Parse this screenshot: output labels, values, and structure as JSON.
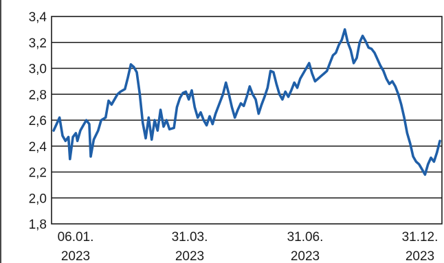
{
  "chart_data": {
    "type": "line",
    "title": "",
    "xlabel": "",
    "ylabel": "",
    "ylim": [
      1.8,
      3.4
    ],
    "y_ticks": [
      1.8,
      2.0,
      2.2,
      2.4,
      2.6,
      2.8,
      3.0,
      3.2,
      3.4
    ],
    "y_tick_labels": [
      "1,8",
      "2,0",
      "2,2",
      "2,4",
      "2,6",
      "2,8",
      "3,0",
      "3,2",
      "3,4"
    ],
    "x_range": [
      "2023-01-01",
      "2023-12-31"
    ],
    "x_ticks": [
      {
        "date": "2023-01-06",
        "line1": "06.01.",
        "line2": "2023"
      },
      {
        "date": "2023-03-31",
        "line1": "31.03.",
        "line2": "2023"
      },
      {
        "date": "2023-06-30",
        "line1": "31.06.",
        "line2": "2023"
      },
      {
        "date": "2023-12-31",
        "line1": "31.12.",
        "line2": "2023"
      }
    ],
    "grid": "horizontal",
    "line_color": "#1f5fa8",
    "series": [
      {
        "points": [
          [
            "2023-01-01",
            2.52
          ],
          [
            "2023-01-03",
            2.57
          ],
          [
            "2023-01-05",
            2.62
          ],
          [
            "2023-01-07",
            2.48
          ],
          [
            "2023-01-09",
            2.44
          ],
          [
            "2023-01-11",
            2.47
          ],
          [
            "2023-01-12",
            2.3
          ],
          [
            "2023-01-14",
            2.47
          ],
          [
            "2023-01-16",
            2.5
          ],
          [
            "2023-01-17",
            2.44
          ],
          [
            "2023-01-19",
            2.52
          ],
          [
            "2023-01-21",
            2.56
          ],
          [
            "2023-01-23",
            2.6
          ],
          [
            "2023-01-25",
            2.57
          ],
          [
            "2023-01-26",
            2.32
          ],
          [
            "2023-01-28",
            2.45
          ],
          [
            "2023-01-31",
            2.52
          ],
          [
            "2023-02-02",
            2.6
          ],
          [
            "2023-02-05",
            2.62
          ],
          [
            "2023-02-07",
            2.75
          ],
          [
            "2023-02-09",
            2.72
          ],
          [
            "2023-02-11",
            2.76
          ],
          [
            "2023-02-13",
            2.8
          ],
          [
            "2023-02-15",
            2.82
          ],
          [
            "2023-02-18",
            2.84
          ],
          [
            "2023-02-20",
            2.93
          ],
          [
            "2023-02-22",
            3.03
          ],
          [
            "2023-02-24",
            3.01
          ],
          [
            "2023-02-26",
            2.97
          ],
          [
            "2023-02-28",
            2.8
          ],
          [
            "2023-03-02",
            2.58
          ],
          [
            "2023-03-04",
            2.46
          ],
          [
            "2023-03-06",
            2.62
          ],
          [
            "2023-03-08",
            2.45
          ],
          [
            "2023-03-10",
            2.6
          ],
          [
            "2023-03-12",
            2.52
          ],
          [
            "2023-03-14",
            2.68
          ],
          [
            "2023-03-16",
            2.55
          ],
          [
            "2023-03-18",
            2.6
          ],
          [
            "2023-03-20",
            2.53
          ],
          [
            "2023-03-23",
            2.54
          ],
          [
            "2023-03-25",
            2.7
          ],
          [
            "2023-03-27",
            2.77
          ],
          [
            "2023-03-29",
            2.81
          ],
          [
            "2023-03-31",
            2.82
          ],
          [
            "2023-04-02",
            2.76
          ],
          [
            "2023-04-04",
            2.83
          ],
          [
            "2023-04-06",
            2.7
          ],
          [
            "2023-04-08",
            2.62
          ],
          [
            "2023-04-10",
            2.66
          ],
          [
            "2023-04-12",
            2.6
          ],
          [
            "2023-04-14",
            2.56
          ],
          [
            "2023-04-16",
            2.63
          ],
          [
            "2023-04-18",
            2.57
          ],
          [
            "2023-04-20",
            2.65
          ],
          [
            "2023-04-23",
            2.74
          ],
          [
            "2023-04-25",
            2.8
          ],
          [
            "2023-04-27",
            2.89
          ],
          [
            "2023-04-29",
            2.8
          ],
          [
            "2023-05-01",
            2.7
          ],
          [
            "2023-05-03",
            2.62
          ],
          [
            "2023-05-05",
            2.68
          ],
          [
            "2023-05-07",
            2.73
          ],
          [
            "2023-05-09",
            2.71
          ],
          [
            "2023-05-11",
            2.78
          ],
          [
            "2023-05-13",
            2.86
          ],
          [
            "2023-05-15",
            2.8
          ],
          [
            "2023-05-17",
            2.76
          ],
          [
            "2023-05-19",
            2.65
          ],
          [
            "2023-05-21",
            2.72
          ],
          [
            "2023-05-23",
            2.78
          ],
          [
            "2023-05-25",
            2.85
          ],
          [
            "2023-05-27",
            2.98
          ],
          [
            "2023-05-29",
            2.97
          ],
          [
            "2023-05-31",
            2.88
          ],
          [
            "2023-06-02",
            2.8
          ],
          [
            "2023-06-04",
            2.76
          ],
          [
            "2023-06-06",
            2.82
          ],
          [
            "2023-06-08",
            2.78
          ],
          [
            "2023-06-10",
            2.83
          ],
          [
            "2023-06-12",
            2.89
          ],
          [
            "2023-06-14",
            2.85
          ],
          [
            "2023-06-16",
            2.92
          ],
          [
            "2023-06-18",
            2.96
          ],
          [
            "2023-06-20",
            3.0
          ],
          [
            "2023-06-22",
            3.04
          ],
          [
            "2023-06-24",
            2.96
          ],
          [
            "2023-06-26",
            2.9
          ],
          [
            "2023-06-28",
            2.92
          ],
          [
            "2023-06-30",
            2.94
          ],
          [
            "2023-07-02",
            2.96
          ],
          [
            "2023-07-04",
            2.98
          ],
          [
            "2023-07-06",
            3.04
          ],
          [
            "2023-07-08",
            3.1
          ],
          [
            "2023-07-10",
            3.12
          ],
          [
            "2023-07-12",
            3.18
          ],
          [
            "2023-07-14",
            3.22
          ],
          [
            "2023-07-16",
            3.3
          ],
          [
            "2023-07-18",
            3.2
          ],
          [
            "2023-07-20",
            3.14
          ],
          [
            "2023-07-22",
            3.04
          ],
          [
            "2023-07-24",
            3.08
          ],
          [
            "2023-07-26",
            3.2
          ],
          [
            "2023-07-28",
            3.25
          ],
          [
            "2023-07-30",
            3.21
          ],
          [
            "2023-08-01",
            3.16
          ],
          [
            "2023-08-03",
            3.15
          ],
          [
            "2023-08-05",
            3.12
          ],
          [
            "2023-08-07",
            3.07
          ],
          [
            "2023-08-09",
            3.02
          ],
          [
            "2023-08-11",
            2.98
          ],
          [
            "2023-08-13",
            2.92
          ],
          [
            "2023-08-15",
            2.88
          ],
          [
            "2023-08-17",
            2.9
          ],
          [
            "2023-08-19",
            2.86
          ],
          [
            "2023-08-21",
            2.8
          ],
          [
            "2023-08-23",
            2.72
          ],
          [
            "2023-08-25",
            2.62
          ],
          [
            "2023-08-27",
            2.5
          ],
          [
            "2023-08-29",
            2.42
          ],
          [
            "2023-08-31",
            2.32
          ],
          [
            "2023-09-02",
            2.28
          ],
          [
            "2023-09-04",
            2.26
          ],
          [
            "2023-09-06",
            2.22
          ],
          [
            "2023-09-08",
            2.18
          ],
          [
            "2023-09-10",
            2.26
          ],
          [
            "2023-09-12",
            2.31
          ],
          [
            "2023-09-14",
            2.28
          ],
          [
            "2023-09-16",
            2.35
          ],
          [
            "2023-09-18",
            2.44
          ]
        ]
      }
    ]
  }
}
